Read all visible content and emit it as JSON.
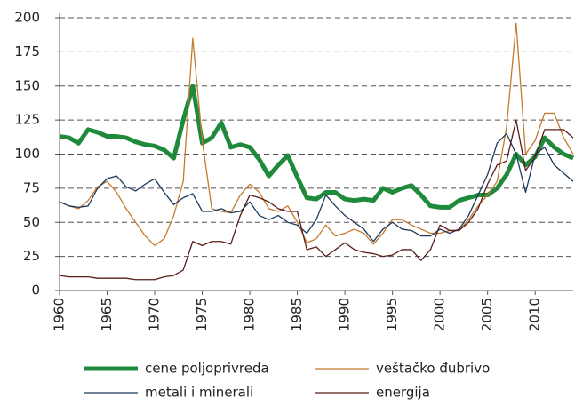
{
  "chart_data": {
    "type": "line",
    "x": [
      1960,
      1961,
      1962,
      1963,
      1964,
      1965,
      1966,
      1967,
      1968,
      1969,
      1970,
      1971,
      1972,
      1973,
      1974,
      1975,
      1976,
      1977,
      1978,
      1979,
      1980,
      1981,
      1982,
      1983,
      1984,
      1985,
      1986,
      1987,
      1988,
      1989,
      1990,
      1991,
      1992,
      1993,
      1994,
      1995,
      1996,
      1997,
      1998,
      1999,
      2000,
      2001,
      2002,
      2003,
      2004,
      2005,
      2006,
      2007,
      2008,
      2009,
      2010,
      2011,
      2012,
      2013,
      2014
    ],
    "series": [
      {
        "name": "cene poljoprivreda",
        "color": "#1f8a3b",
        "values": [
          113,
          112,
          108,
          118,
          116,
          113,
          113,
          112,
          109,
          107,
          106,
          103,
          97,
          125,
          150,
          108,
          112,
          123,
          105,
          107,
          105,
          96,
          84,
          92,
          99,
          83,
          68,
          67,
          72,
          72,
          67,
          66,
          67,
          66,
          75,
          72,
          75,
          77,
          70,
          62,
          61,
          61,
          66,
          68,
          70,
          70,
          75,
          85,
          100,
          92,
          98,
          112,
          105,
          100,
          97
        ]
      },
      {
        "name": "veštačko đubrivo",
        "color": "#c47a2c",
        "values": [
          65,
          62,
          60,
          66,
          76,
          80,
          72,
          60,
          50,
          40,
          33,
          38,
          55,
          80,
          185,
          110,
          60,
          58,
          57,
          70,
          78,
          72,
          60,
          58,
          62,
          50,
          35,
          38,
          48,
          40,
          42,
          45,
          42,
          34,
          42,
          52,
          52,
          48,
          45,
          42,
          42,
          44,
          44,
          52,
          62,
          70,
          80,
          120,
          196,
          100,
          110,
          130,
          130,
          112,
          100
        ]
      },
      {
        "name": "metali i minerali",
        "color": "#1d3a5c",
        "values": [
          65,
          62,
          61,
          62,
          75,
          82,
          84,
          76,
          73,
          78,
          82,
          72,
          63,
          68,
          71,
          58,
          58,
          60,
          57,
          58,
          65,
          55,
          52,
          55,
          50,
          48,
          42,
          52,
          70,
          62,
          55,
          50,
          45,
          36,
          45,
          50,
          45,
          44,
          40,
          40,
          45,
          42,
          45,
          55,
          70,
          85,
          108,
          115,
          100,
          72,
          100,
          105,
          92,
          86,
          80
        ]
      },
      {
        "name": "energija",
        "color": "#5b1c1c",
        "values": [
          11,
          10,
          10,
          10,
          9,
          9,
          9,
          9,
          8,
          8,
          8,
          10,
          11,
          15,
          36,
          33,
          36,
          36,
          34,
          55,
          70,
          68,
          65,
          60,
          58,
          58,
          30,
          32,
          25,
          30,
          35,
          30,
          28,
          27,
          25,
          26,
          30,
          30,
          22,
          30,
          48,
          44,
          44,
          50,
          60,
          78,
          92,
          95,
          125,
          88,
          98,
          118,
          118,
          118,
          112
        ]
      }
    ],
    "xlim": [
      1960,
      2014
    ],
    "xticks": [
      1960,
      1965,
      1970,
      1975,
      1980,
      1985,
      1990,
      1995,
      2000,
      2005,
      2010
    ],
    "ylim": [
      0,
      200
    ],
    "yticks": [
      0,
      25,
      50,
      75,
      100,
      125,
      150,
      175,
      200
    ],
    "grid": true
  }
}
